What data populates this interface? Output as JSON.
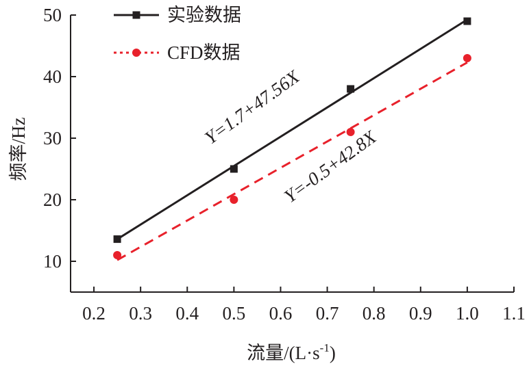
{
  "chart_data": {
    "type": "scatter",
    "title": "",
    "xlabel": "流量/(L·s",
    "xlabel_sup": "-1",
    "xlabel_tail": ")",
    "ylabel": "频率/Hz",
    "xlim": [
      0.15,
      1.1
    ],
    "ylim": [
      5,
      50
    ],
    "x_ticks": [
      "0.2",
      "0.3",
      "0.4",
      "0.5",
      "0.6",
      "0.7",
      "0.8",
      "0.9",
      "1.0",
      "1.1"
    ],
    "y_ticks": [
      "10",
      "20",
      "30",
      "40",
      "50"
    ],
    "grid": false,
    "legend_position": "top-left",
    "series": [
      {
        "name": "实验数据",
        "marker": "square",
        "line_style": "solid",
        "color": "#231f20",
        "x": [
          0.25,
          0.5,
          0.75,
          1.0
        ],
        "y": [
          13.6,
          25.0,
          38.0,
          49.0
        ],
        "fit": {
          "intercept": 1.7,
          "slope": 47.56,
          "label": "Y=1.7+47.56X"
        }
      },
      {
        "name": "CFD数据",
        "marker": "circle",
        "line_style": "dashed",
        "color": "#e8212b",
        "x": [
          0.25,
          0.5,
          0.75,
          1.0
        ],
        "y": [
          11.0,
          20.0,
          31.0,
          43.0
        ],
        "fit": {
          "intercept": -0.5,
          "slope": 42.8,
          "label": "Y=-0.5+42.8X"
        }
      }
    ]
  }
}
